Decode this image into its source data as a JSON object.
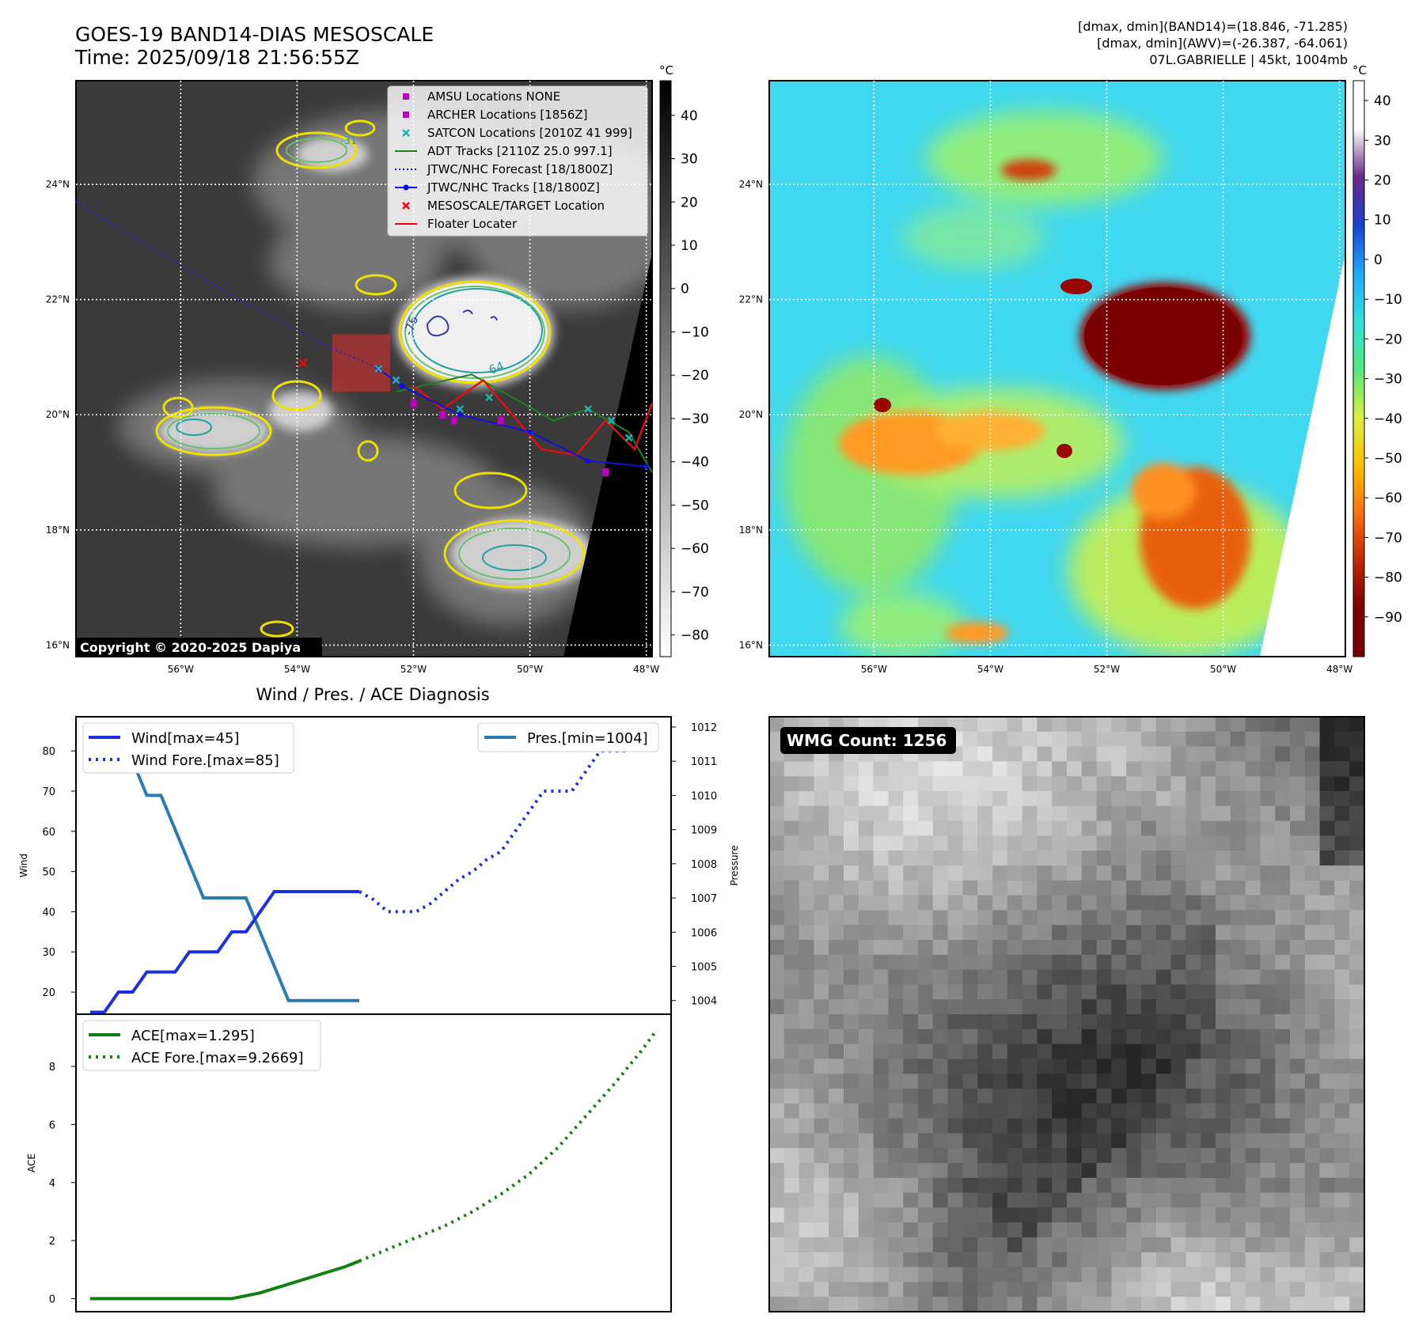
{
  "header": {
    "title_line1": "GOES-19 BAND14-DIAS MESOSCALE",
    "title_line2": "Time: 2025/09/18 21:56:55Z",
    "info_line1": "[dmax, dmin](BAND14)=(18.846, -71.285)",
    "info_line2": "[dmax, dmin](AWV)=(-26.387, -64.061)",
    "info_line3": "07L.GABRIELLE | 45kt, 1004mb"
  },
  "map_axes": {
    "lat_labels": [
      "24°N",
      "22°N",
      "20°N",
      "18°N",
      "16°N"
    ],
    "lat_values": [
      24,
      22,
      20,
      18,
      16
    ],
    "lon_labels": [
      "56°W",
      "54°W",
      "52°W",
      "50°W",
      "48°W"
    ],
    "lon_values": [
      -56,
      -54,
      -52,
      -50,
      -48
    ],
    "lon_range": [
      -57.8,
      -47.9
    ],
    "lat_range": [
      15.8,
      25.8
    ]
  },
  "ir_panel": {
    "colorbar_unit": "°C",
    "colorbar_ticks": [
      "40",
      "30",
      "20",
      "10",
      "0",
      "−10",
      "−20",
      "−30",
      "−40",
      "−50",
      "−60",
      "−70",
      "−80"
    ],
    "colorbar_values": [
      40,
      30,
      20,
      10,
      0,
      -10,
      -20,
      -30,
      -40,
      -50,
      -60,
      -70,
      -80
    ],
    "colorbar_range": [
      48,
      -85
    ],
    "copyright": "Copyright © 2020-2025 Dapiya",
    "contour_labels": [
      "-76",
      "-64",
      "-31"
    ],
    "legend": [
      {
        "label": "AMSU Locations NONE",
        "marker": "square",
        "color": "#c000c0"
      },
      {
        "label": "ARCHER Locations [1856Z]",
        "marker": "square",
        "color": "#c000c0"
      },
      {
        "label": "SATCON Locations [2010Z 41 999]",
        "marker": "x",
        "color": "#20b0b0"
      },
      {
        "label": "ADT Tracks [2110Z 25.0 997.1]",
        "marker": "line",
        "color": "#208020"
      },
      {
        "label": "JTWC/NHC Forecast [18/1800Z]",
        "marker": "dotted",
        "color": "#0000ff"
      },
      {
        "label": "JTWC/NHC Tracks [18/1800Z]",
        "marker": "line-dot",
        "color": "#0000ff"
      },
      {
        "label": "MESOSCALE/TARGET Location",
        "marker": "x",
        "color": "#ff0000"
      },
      {
        "label": "Floater Locater",
        "marker": "line",
        "color": "#ff0000"
      }
    ],
    "nhc_track": [
      [
        -52.6,
        20.8
      ],
      [
        -52.2,
        20.5
      ],
      [
        -51.2,
        20.0
      ],
      [
        -50.0,
        19.7
      ],
      [
        -49.0,
        19.2
      ],
      [
        -48.0,
        19.1
      ]
    ],
    "forecast_track": [
      [
        -57.8,
        23.7
      ],
      [
        -56.5,
        22.9
      ],
      [
        -55.0,
        22.0
      ],
      [
        -53.5,
        21.2
      ],
      [
        -52.6,
        20.8
      ]
    ],
    "adt_track": [
      [
        -52.3,
        20.4
      ],
      [
        -51.0,
        20.7
      ],
      [
        -49.6,
        19.9
      ],
      [
        -49.0,
        20.1
      ],
      [
        -48.3,
        19.7
      ],
      [
        -47.9,
        19.0
      ]
    ],
    "floater_track": [
      [
        -52.0,
        20.5
      ],
      [
        -51.5,
        20.1
      ],
      [
        -50.8,
        20.6
      ],
      [
        -49.8,
        19.4
      ],
      [
        -49.2,
        19.3
      ],
      [
        -48.7,
        19.9
      ],
      [
        -48.2,
        19.4
      ],
      [
        -47.9,
        20.2
      ]
    ],
    "satcon_points": [
      [
        -52.6,
        20.8
      ],
      [
        -52.3,
        20.6
      ],
      [
        -51.2,
        20.1
      ],
      [
        -50.7,
        20.3
      ],
      [
        -49.0,
        20.1
      ],
      [
        -48.6,
        19.9
      ],
      [
        -48.3,
        19.6
      ]
    ],
    "archer_points": [
      [
        -52.0,
        20.2
      ],
      [
        -51.5,
        20.0
      ],
      [
        -51.3,
        19.9
      ],
      [
        -50.5,
        19.9
      ],
      [
        -48.7,
        19.0
      ]
    ],
    "target_point": [
      -53.9,
      20.9
    ],
    "mesoscale_box": [
      [
        -53.4,
        20.4
      ],
      [
        -52.4,
        21.4
      ]
    ]
  },
  "awv_panel": {
    "colorbar_unit": "°C",
    "colorbar_ticks": [
      "40",
      "30",
      "20",
      "10",
      "0",
      "−10",
      "−20",
      "−30",
      "−40",
      "−50",
      "−60",
      "−70",
      "−80",
      "−90"
    ],
    "colorbar_values": [
      40,
      30,
      20,
      10,
      0,
      -10,
      -20,
      -30,
      -40,
      -50,
      -60,
      -70,
      -80,
      -90
    ],
    "colorbar_range": [
      45,
      -100
    ],
    "colorbar_stops": [
      "#ffffff",
      "#ffffff",
      "#6a2a8a",
      "#1a40d0",
      "#20a8ff",
      "#30e0e0",
      "#50e880",
      "#d8f040",
      "#ffc000",
      "#ff7010",
      "#c02800",
      "#7a0000",
      "#7a0000"
    ]
  },
  "diagnosis": {
    "title": "Wind / Pres. / ACE Diagnosis",
    "wind_ylabel": "Wind",
    "pres_ylabel": "Pressure",
    "ace_ylabel": "ACE",
    "wind_ticks": [
      "20",
      "30",
      "40",
      "50",
      "60",
      "70",
      "80"
    ],
    "wind_tick_values": [
      20,
      30,
      40,
      50,
      60,
      70,
      80
    ],
    "wind_range": [
      14.5,
      88.5
    ],
    "pres_ticks": [
      "1004",
      "1005",
      "1006",
      "1007",
      "1008",
      "1009",
      "1010",
      "1011",
      "1012"
    ],
    "pres_tick_values": [
      1004,
      1005,
      1006,
      1007,
      1008,
      1009,
      1010,
      1011,
      1012
    ],
    "pres_range": [
      1003.6,
      1012.3
    ],
    "ace_ticks": [
      "0",
      "2",
      "4",
      "6",
      "8"
    ],
    "ace_tick_values": [
      0,
      2,
      4,
      6,
      8
    ],
    "ace_range": [
      -0.45,
      9.8
    ],
    "x_range": [
      -1,
      41
    ],
    "legend_wind": "Wind[max=45]",
    "legend_wind_fore": "Wind Fore.[max=85]",
    "legend_pres": "Pres.[min=1004]",
    "legend_ace": "ACE[max=1.295]",
    "legend_ace_fore": "ACE Fore.[max=9.2669]"
  },
  "chart_data": [
    {
      "type": "line",
      "title": "Wind / Pres. / ACE Diagnosis",
      "ylabel": "Wind",
      "series": [
        {
          "name": "Wind[max=45]",
          "x": [
            0,
            1,
            2,
            3,
            4,
            5,
            6,
            7,
            8,
            9,
            10,
            11,
            12,
            13,
            14,
            15,
            16,
            17,
            18,
            19
          ],
          "values": [
            15,
            15,
            20,
            20,
            25,
            25,
            25,
            30,
            30,
            30,
            35,
            35,
            40,
            45,
            45,
            45,
            45,
            45,
            45,
            45
          ]
        },
        {
          "name": "Wind Fore.[max=85]",
          "x": [
            19,
            20,
            21,
            22,
            23,
            24,
            25,
            26,
            27,
            28,
            29,
            30,
            31,
            32,
            33,
            34,
            35,
            36,
            37,
            38,
            39,
            40
          ],
          "values": [
            45,
            43,
            40,
            40,
            40,
            42,
            45,
            48,
            50,
            53,
            55,
            60,
            65,
            70,
            70,
            70,
            75,
            80,
            80,
            80,
            85,
            85
          ]
        },
        {
          "name": "Pres.[min=1004]",
          "axis": "right",
          "ylabel": "Pressure",
          "x": [
            0,
            1,
            2,
            3,
            4,
            5,
            6,
            7,
            8,
            9,
            10,
            11,
            12,
            13,
            14,
            15,
            16,
            17,
            18,
            19
          ],
          "values": [
            1012,
            1012,
            1011,
            1011,
            1010,
            1010,
            1009,
            1008,
            1007,
            1007,
            1007,
            1007,
            1006,
            1005,
            1004,
            1004,
            1004,
            1004,
            1004,
            1004
          ]
        }
      ]
    },
    {
      "type": "line",
      "ylabel": "ACE",
      "series": [
        {
          "name": "ACE[max=1.295]",
          "x": [
            0,
            2,
            4,
            6,
            8,
            10,
            12,
            14,
            16,
            18,
            19
          ],
          "values": [
            0,
            0,
            0,
            0,
            0,
            0,
            0.2,
            0.5,
            0.8,
            1.1,
            1.295
          ]
        },
        {
          "name": "ACE Fore.[max=9.2669]",
          "x": [
            19,
            21,
            23,
            25,
            27,
            29,
            31,
            33,
            35,
            37,
            39,
            40
          ],
          "values": [
            1.295,
            1.7,
            2.1,
            2.5,
            3.0,
            3.6,
            4.3,
            5.2,
            6.3,
            7.4,
            8.6,
            9.2669
          ]
        }
      ]
    }
  ],
  "wmg_panel": {
    "label": "WMG Count: 1256"
  }
}
